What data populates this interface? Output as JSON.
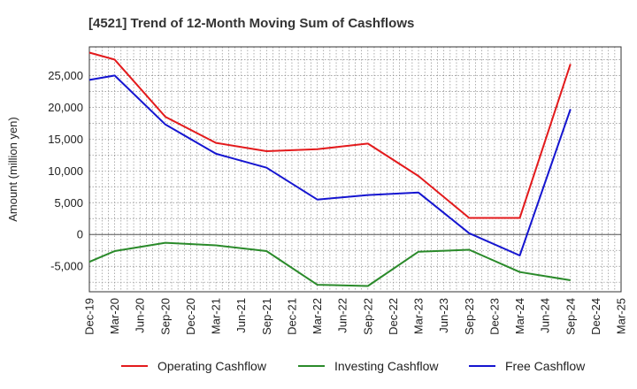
{
  "chart_data": {
    "type": "line",
    "title": "[4521]  Trend of 12-Month Moving Sum of Cashflows",
    "xlabel": "",
    "ylabel": "Amount (million yen)",
    "categories": [
      "Dec-19",
      "Mar-20",
      "Jun-20",
      "Sep-20",
      "Dec-20",
      "Mar-21",
      "Jun-21",
      "Sep-21",
      "Dec-21",
      "Mar-22",
      "Jun-22",
      "Sep-22",
      "Dec-22",
      "Mar-23",
      "Jun-23",
      "Sep-23",
      "Dec-23",
      "Mar-24",
      "Jun-24",
      "Sep-24",
      "Dec-24",
      "Mar-25"
    ],
    "ylim": [
      -9000,
      29500
    ],
    "yticks": [
      -5000,
      0,
      5000,
      10000,
      15000,
      20000,
      25000
    ],
    "ytick_labels": [
      "-5,000",
      "0",
      "5,000",
      "10,000",
      "15,000",
      "20,000",
      "25,000"
    ],
    "grid": true,
    "legend_position": "bottom",
    "series": [
      {
        "name": "Operating Cashflow",
        "color": "#e31a1c",
        "x": [
          "Dec-19",
          "Mar-20",
          "Sep-20",
          "Mar-21",
          "Sep-21",
          "Mar-22",
          "Sep-22",
          "Mar-23",
          "Sep-23",
          "Mar-24",
          "Sep-24"
        ],
        "values": [
          28600,
          27500,
          18500,
          14400,
          13100,
          13400,
          14300,
          9200,
          2600,
          2600,
          26800
        ]
      },
      {
        "name": "Investing Cashflow",
        "color": "#2a8a2a",
        "x": [
          "Dec-19",
          "Mar-20",
          "Sep-20",
          "Mar-21",
          "Sep-21",
          "Mar-22",
          "Sep-22",
          "Mar-23",
          "Sep-23",
          "Mar-24",
          "Sep-24"
        ],
        "values": [
          -4300,
          -2600,
          -1300,
          -1700,
          -2600,
          -7900,
          -8100,
          -2700,
          -2400,
          -5900,
          -7200
        ]
      },
      {
        "name": "Free Cashflow",
        "color": "#1515d0",
        "x": [
          "Dec-19",
          "Mar-20",
          "Sep-20",
          "Mar-21",
          "Sep-21",
          "Mar-22",
          "Sep-22",
          "Mar-23",
          "Sep-23",
          "Mar-24",
          "Sep-24"
        ],
        "values": [
          24300,
          25000,
          17300,
          12700,
          10500,
          5500,
          6200,
          6600,
          200,
          -3300,
          19700
        ]
      }
    ]
  }
}
